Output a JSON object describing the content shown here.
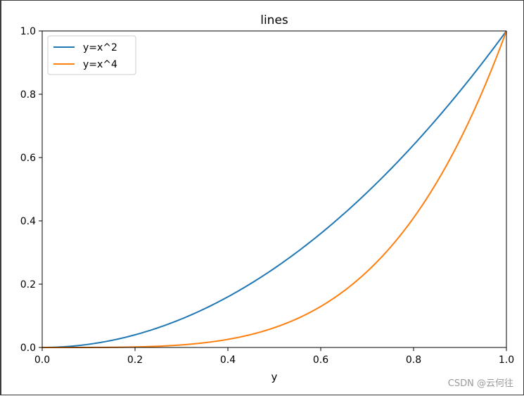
{
  "chart_data": {
    "type": "line",
    "title": "lines",
    "xlabel": "y",
    "ylabel": "",
    "xlim": [
      0.0,
      1.0
    ],
    "ylim": [
      0.0,
      1.0
    ],
    "x_ticks": [
      "0.0",
      "0.2",
      "0.4",
      "0.6",
      "0.8",
      "1.0"
    ],
    "y_ticks": [
      "0.0",
      "0.2",
      "0.4",
      "0.6",
      "0.8",
      "1.0"
    ],
    "grid": false,
    "legend_position": "top-left",
    "x": [
      0.0,
      0.05,
      0.1,
      0.15,
      0.2,
      0.25,
      0.3,
      0.35,
      0.4,
      0.45,
      0.5,
      0.55,
      0.6,
      0.65,
      0.7,
      0.75,
      0.8,
      0.85,
      0.9,
      0.95,
      1.0
    ],
    "series": [
      {
        "name": "y=x^2",
        "color": "#1f77b4",
        "values": [
          0.0,
          0.0025,
          0.01,
          0.0225,
          0.04,
          0.0625,
          0.09,
          0.1225,
          0.16,
          0.2025,
          0.25,
          0.3025,
          0.36,
          0.4225,
          0.49,
          0.5625,
          0.64,
          0.7225,
          0.81,
          0.9025,
          1.0
        ]
      },
      {
        "name": "y=x^4",
        "color": "#ff7f0e",
        "values": [
          0.0,
          6.25e-06,
          0.0001,
          0.00050625,
          0.0016,
          0.00390625,
          0.0081,
          0.01500625,
          0.0256,
          0.04100625,
          0.0625,
          0.09150625,
          0.1296,
          0.17850625,
          0.2401,
          0.31640625,
          0.4096,
          0.52200625,
          0.6561,
          0.81450625,
          1.0
        ]
      }
    ]
  },
  "watermark": "CSDN @云何往"
}
